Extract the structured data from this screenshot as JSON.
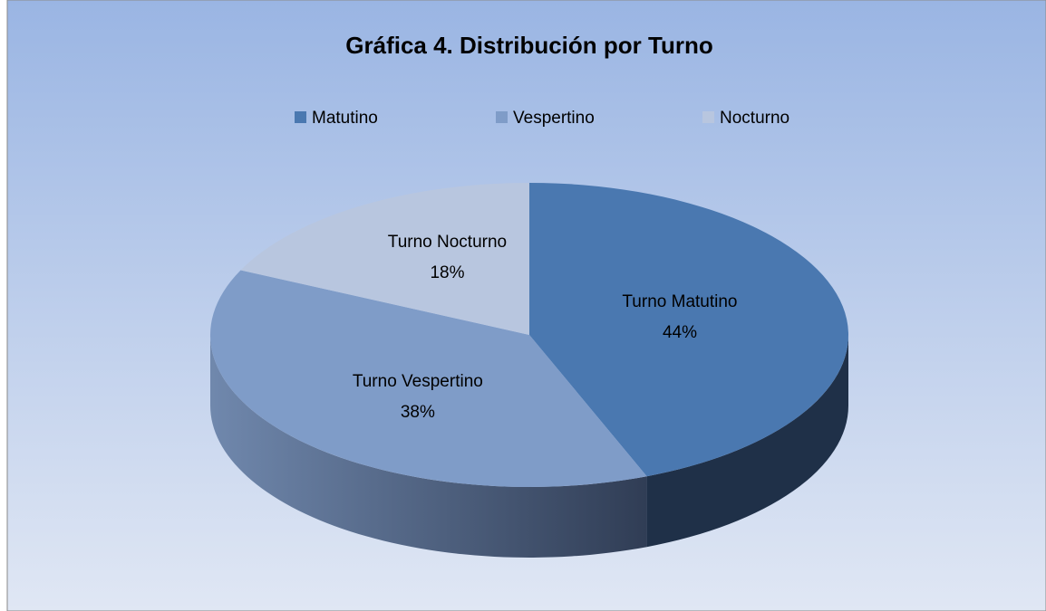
{
  "chart_data": {
    "type": "pie",
    "title": "Gráfica 4. Distribución por Turno",
    "categories": [
      "Matutino",
      "Vespertino",
      "Nocturno"
    ],
    "values": [
      44,
      38,
      18
    ],
    "value_labels": [
      "44%",
      "38%",
      "18%"
    ],
    "slice_labels": [
      "Turno Matutino",
      "Turno Vespertino",
      "Turno Nocturno"
    ],
    "colors": [
      "#4a78b0",
      "#7f9cc8",
      "#b8c6df"
    ],
    "legend": "top"
  }
}
